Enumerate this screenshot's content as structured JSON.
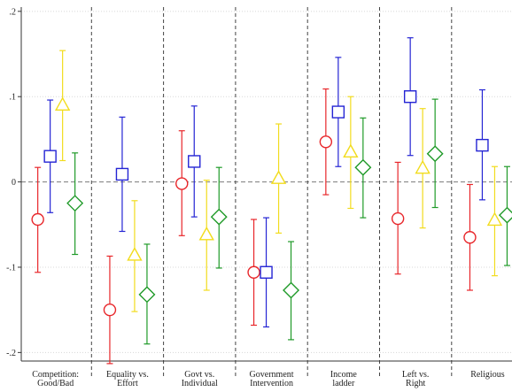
{
  "chart_data": {
    "type": "scatter",
    "title": "",
    "xlabel": "",
    "ylabel": "",
    "ylim": [
      -0.21,
      0.205
    ],
    "grid": true,
    "y_ticks": [
      {
        "value": 0.2,
        "label": ".2"
      },
      {
        "value": 0.1,
        "label": ".1"
      },
      {
        "value": 0,
        "label": "0"
      },
      {
        "value": -0.1,
        "label": "-.1"
      },
      {
        "value": -0.2,
        "label": "-.2"
      }
    ],
    "categories": [
      {
        "line1": "Competition:",
        "line2": "Good/Bad"
      },
      {
        "line1": "Equality vs.",
        "line2": "Effort"
      },
      {
        "line1": "Govt vs.",
        "line2": "Individual"
      },
      {
        "line1": "Government",
        "line2": "Intervention"
      },
      {
        "line1": "Income",
        "line2": "ladder"
      },
      {
        "line1": "Left vs.",
        "line2": "Right"
      },
      {
        "line1": "Religious",
        "line2": ""
      }
    ],
    "series": [
      {
        "marker": "circle",
        "color": "#e8262a",
        "values": [
          -0.044,
          -0.15,
          -0.002,
          -0.106,
          0.047,
          -0.043,
          -0.065
        ],
        "lower": [
          -0.106,
          -0.213,
          -0.063,
          -0.168,
          -0.015,
          -0.108,
          -0.127
        ],
        "upper": [
          0.017,
          -0.087,
          0.06,
          -0.044,
          0.109,
          0.023,
          -0.003
        ]
      },
      {
        "marker": "square",
        "color": "#2424d4",
        "values": [
          0.03,
          0.009,
          0.024,
          -0.106,
          0.082,
          0.1,
          0.043
        ],
        "lower": [
          -0.036,
          -0.058,
          -0.041,
          -0.17,
          0.018,
          0.031,
          -0.021
        ],
        "upper": [
          0.096,
          0.076,
          0.089,
          -0.042,
          0.146,
          0.169,
          0.108
        ]
      },
      {
        "marker": "triangle",
        "color": "#f2dc1d",
        "values": [
          0.09,
          -0.086,
          -0.062,
          0.004,
          0.035,
          0.016,
          -0.045
        ],
        "lower": [
          0.025,
          -0.152,
          -0.127,
          -0.06,
          -0.031,
          -0.054,
          -0.11
        ],
        "upper": [
          0.154,
          -0.022,
          0.002,
          0.068,
          0.1,
          0.086,
          0.018
        ]
      },
      {
        "marker": "diamond",
        "color": "#1f9a28",
        "values": [
          -0.025,
          -0.132,
          -0.041,
          -0.127,
          0.017,
          0.033,
          -0.039
        ],
        "lower": [
          -0.085,
          -0.19,
          -0.101,
          -0.185,
          -0.042,
          -0.03,
          -0.098
        ],
        "upper": [
          0.034,
          -0.073,
          0.017,
          -0.07,
          0.075,
          0.097,
          0.018
        ]
      }
    ]
  }
}
